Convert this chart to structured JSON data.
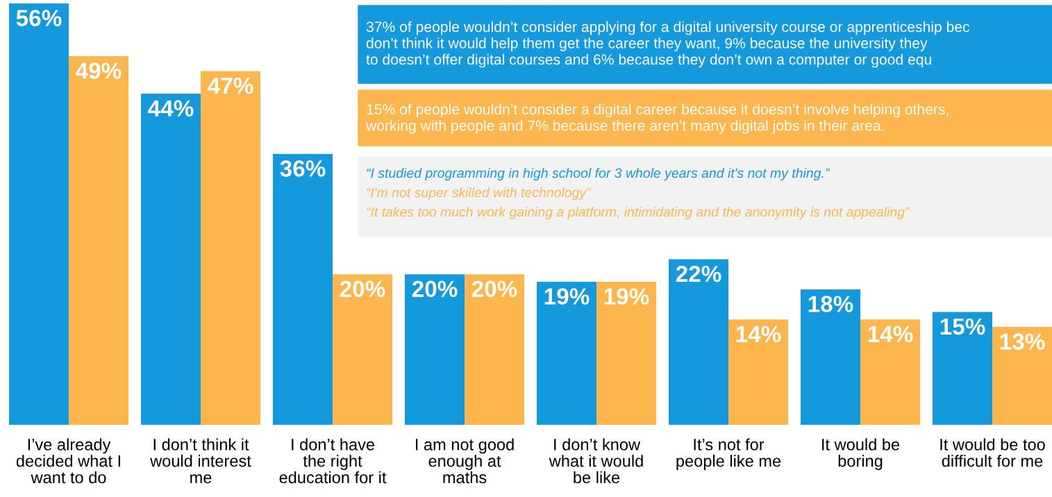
{
  "chart_data": {
    "type": "bar",
    "categories": [
      "I’ve already\ndecided what I\nwant to do",
      "I don’t think it\nwould interest\nme",
      "I don’t have\nthe right\neducation for it",
      "I am not good\nenough at\nmaths",
      "I don’t know\nwhat it would\nbe like",
      "It’s not for\npeople like me",
      "It would be\nboring",
      "It would be too\ndifficult for me"
    ],
    "series": [
      {
        "color": "#1399dc",
        "values": [
          56,
          44,
          36,
          20,
          19,
          22,
          18,
          15
        ],
        "value_labels": [
          "56%",
          "44%",
          "36%",
          "20%",
          "19%",
          "22%",
          "18%",
          "15%"
        ]
      },
      {
        "color": "#fdb54d",
        "values": [
          49,
          47,
          20,
          20,
          19,
          14,
          14,
          13
        ],
        "value_labels": [
          "49%",
          "47%",
          "20%",
          "20%",
          "19%",
          "14%",
          "14%",
          "13%"
        ]
      }
    ],
    "annotations": [
      "37% of people wouldn’t consider applying for a digital university course or apprenticeship bec\ndon’t think it would help them get the career they want, 9% because the university they\nto doesn’t offer digital courses and 6% because they don’t own a computer or good equ",
      "15% of people wouldn’t consider a digital career because it doesn’t involve helping others,\nworking with people and 7% because there aren’t many digital jobs in their area.",
      "“I studied programming in high school for 3 whole years and it's not my thing.”",
      "“I'm not super skilled with technology”",
      "“It takes too much work gaining a platform, intimidating and the anonymity is not appealing”"
    ],
    "tick_labels": "x"
  }
}
